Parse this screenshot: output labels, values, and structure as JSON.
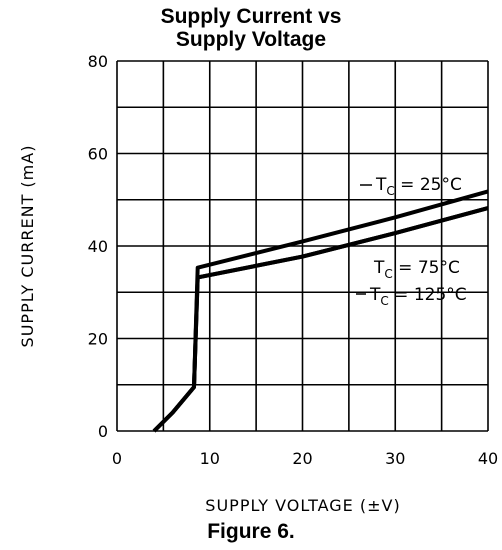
{
  "chart_data": {
    "type": "line",
    "title_line1": "Supply Current vs",
    "title_line2": "Supply Voltage",
    "xlabel": "SUPPLY VOLTAGE (±V)",
    "ylabel": "SUPPLY CURRENT (mA)",
    "caption": "Figure 6.",
    "xlim": [
      0,
      40
    ],
    "ylim": [
      0,
      80
    ],
    "xticks": [
      0,
      10,
      20,
      30,
      40
    ],
    "yticks": [
      0,
      20,
      40,
      60,
      80
    ],
    "x_gridlines": [
      0,
      5,
      10,
      15,
      20,
      25,
      30,
      35,
      40
    ],
    "y_gridlines": [
      0,
      10,
      20,
      30,
      40,
      50,
      60,
      70,
      80
    ],
    "grid": true,
    "series": [
      {
        "name": "TC = 25°C",
        "label_main": "T",
        "label_sub": "C",
        "label_rest": " = 25°C",
        "points": [
          [
            4,
            0
          ],
          [
            6,
            4
          ],
          [
            8.3,
            9.5
          ],
          [
            8.7,
            35.3
          ],
          [
            20,
            41
          ],
          [
            30,
            46.2
          ],
          [
            40,
            51.8
          ]
        ]
      },
      {
        "name": "TC = 75°C",
        "label_main": "T",
        "label_sub": "C",
        "label_rest": " = 75°C",
        "points": [
          [
            4,
            0
          ],
          [
            6,
            4
          ],
          [
            8.3,
            9.5
          ],
          [
            8.7,
            33.2
          ],
          [
            20,
            37.7
          ],
          [
            30,
            42.8
          ],
          [
            40,
            48.2
          ]
        ]
      },
      {
        "name": "TC = 125°C",
        "label_main": "T",
        "label_sub": "C",
        "label_rest": " = 125°C",
        "points": [
          [
            4,
            0
          ],
          [
            6,
            4
          ],
          [
            8.3,
            9.5
          ],
          [
            8.7,
            33.2
          ],
          [
            20,
            37.7
          ],
          [
            30,
            42.8
          ],
          [
            40,
            48.2
          ]
        ]
      }
    ],
    "colors": {
      "line": "#000000",
      "grid": "#000000",
      "background": "#ffffff"
    }
  }
}
